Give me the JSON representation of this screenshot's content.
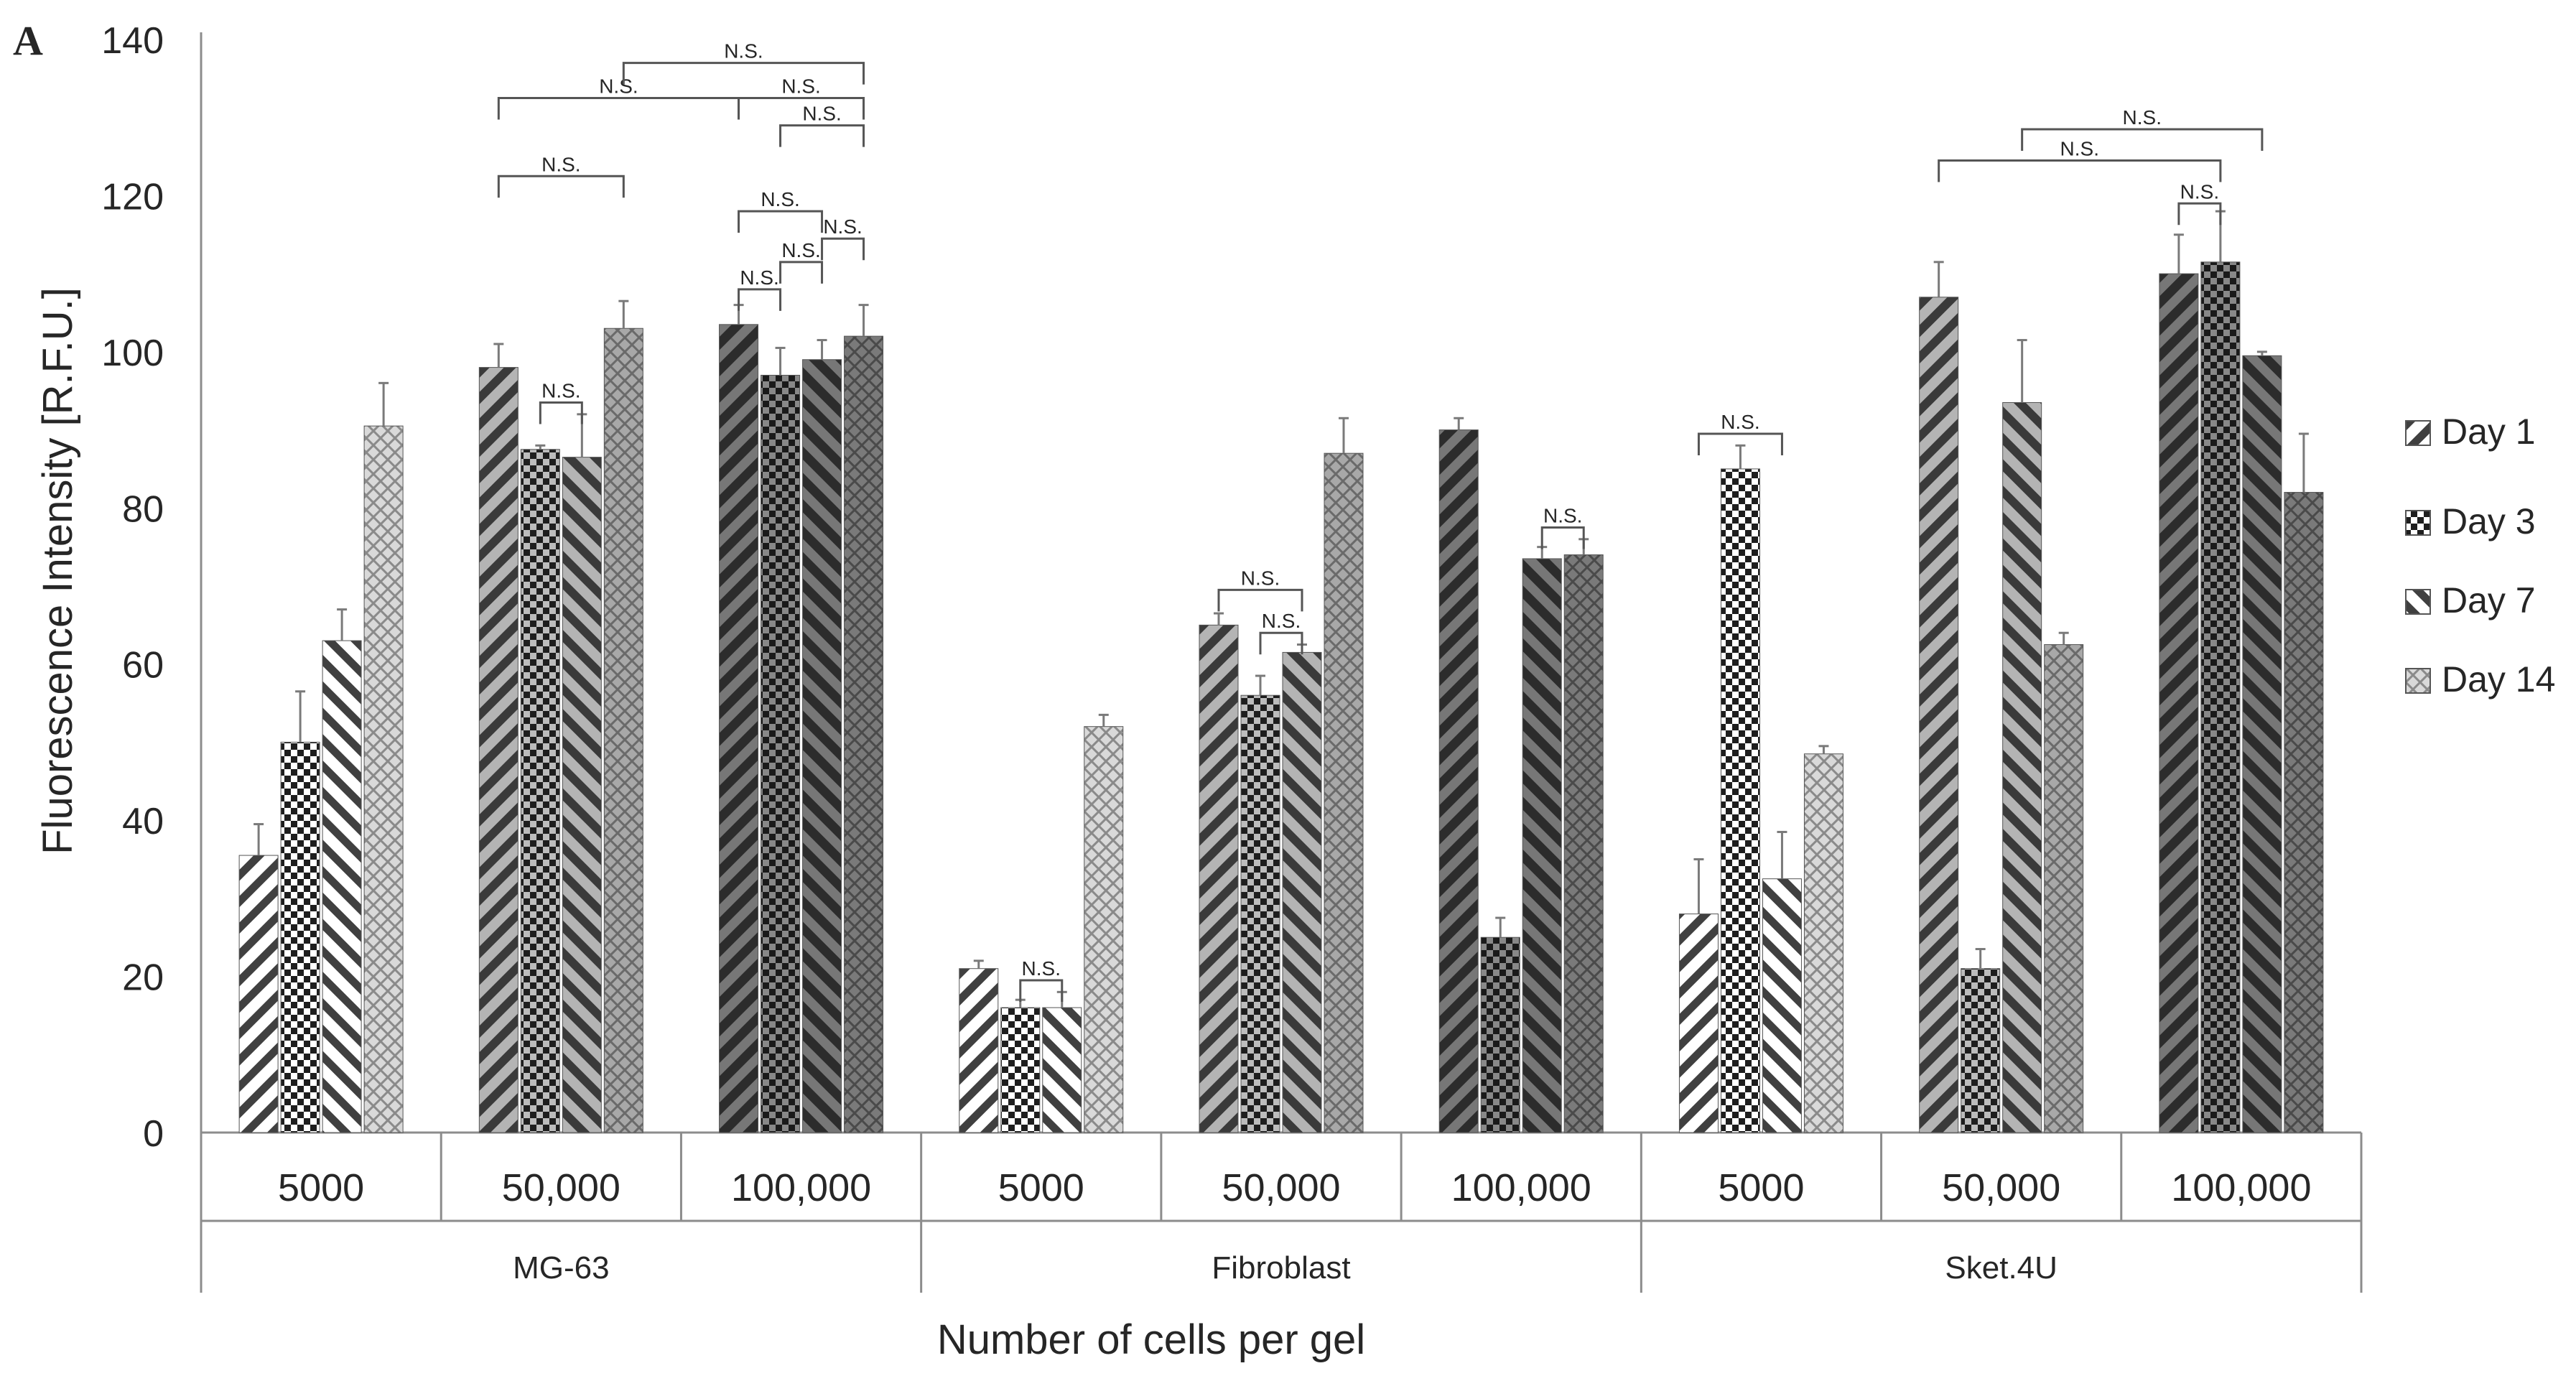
{
  "panel_label": "A",
  "chart_data": {
    "type": "bar",
    "title": "",
    "xlabel": "Number of cells per gel",
    "ylabel": "Fluorescence Intensity [R.F.U.]",
    "ylim": [
      0,
      140
    ],
    "yticks": [
      "0",
      "20",
      "40",
      "60",
      "80",
      "100",
      "120",
      "140"
    ],
    "legend_position": "right",
    "series_names": [
      "Day 1",
      "Day 3",
      "Day 7",
      "Day 14"
    ],
    "groups": [
      {
        "name": "MG-63",
        "categories": [
          {
            "label": "5000",
            "values": [
              35.5,
              50.0,
              63.0,
              90.5
            ],
            "errors": [
              4.0,
              6.5,
              4.0,
              5.5
            ],
            "shade": "light"
          },
          {
            "label": "50,000",
            "values": [
              98.0,
              87.5,
              86.5,
              103.0
            ],
            "errors": [
              3.0,
              0.5,
              5.5,
              3.5
            ],
            "shade": "mid"
          },
          {
            "label": "100,000",
            "values": [
              103.5,
              97.0,
              99.0,
              102.0
            ],
            "errors": [
              2.5,
              3.5,
              2.5,
              4.0
            ],
            "shade": "dark"
          }
        ]
      },
      {
        "name": "Fibroblast",
        "categories": [
          {
            "label": "5000",
            "values": [
              21.0,
              16.0,
              16.0,
              52.0
            ],
            "errors": [
              1.0,
              1.0,
              2.0,
              1.5
            ],
            "shade": "light"
          },
          {
            "label": "50,000",
            "values": [
              65.0,
              56.0,
              61.5,
              87.0
            ],
            "errors": [
              1.5,
              2.5,
              1.0,
              4.5
            ],
            "shade": "mid"
          },
          {
            "label": "100,000",
            "values": [
              90.0,
              25.0,
              73.5,
              74.0
            ],
            "errors": [
              1.5,
              2.5,
              1.5,
              2.0
            ],
            "shade": "dark"
          }
        ]
      },
      {
        "name": "Sket.4U",
        "categories": [
          {
            "label": "5000",
            "values": [
              28.0,
              85.0,
              32.5,
              48.5
            ],
            "errors": [
              7.0,
              3.0,
              6.0,
              1.0
            ],
            "shade": "light"
          },
          {
            "label": "50,000",
            "values": [
              107.0,
              21.0,
              93.5,
              62.5
            ],
            "errors": [
              4.5,
              2.5,
              8.0,
              1.5
            ],
            "shade": "mid"
          },
          {
            "label": "100,000",
            "values": [
              110.0,
              111.5,
              99.5,
              82.0
            ],
            "errors": [
              5.0,
              6.5,
              0.5,
              7.5
            ],
            "shade": "dark"
          }
        ]
      }
    ],
    "annotations": [
      {
        "text": "N.S.",
        "g": 0,
        "c": 1,
        "from": 0,
        "to": 3,
        "y": 122.5
      },
      {
        "text": "N.S.",
        "g": 0,
        "c": 1,
        "from": 1,
        "to": 2,
        "y": 93.5
      },
      {
        "text": "N.S.",
        "g": 0,
        "c": 1,
        "from": 0,
        "to": 4,
        "y": 132.5,
        "to_g": 0,
        "to_c": 2,
        "to_bar": 0
      },
      {
        "text": "N.S.",
        "g": 0,
        "c": 1,
        "from": 3,
        "to": 4,
        "y": 137.0,
        "to_g": 0,
        "to_c": 2,
        "to_bar": 3
      },
      {
        "text": "N.S.",
        "g": 0,
        "c": 2,
        "from": 0,
        "to": 3,
        "y": 132.5
      },
      {
        "text": "N.S.",
        "g": 0,
        "c": 2,
        "from": 1,
        "to": 3,
        "y": 129.0
      },
      {
        "text": "N.S.",
        "g": 0,
        "c": 2,
        "from": 0,
        "to": 2,
        "y": 118.0
      },
      {
        "text": "N.S.",
        "g": 0,
        "c": 2,
        "from": 2,
        "to": 3,
        "y": 114.5
      },
      {
        "text": "N.S.",
        "g": 0,
        "c": 2,
        "from": 1,
        "to": 2,
        "y": 111.5
      },
      {
        "text": "N.S.",
        "g": 0,
        "c": 2,
        "from": 0,
        "to": 1,
        "y": 108.0
      },
      {
        "text": "N.S.",
        "g": 1,
        "c": 0,
        "from": 1,
        "to": 2,
        "y": 19.5
      },
      {
        "text": "N.S.",
        "g": 1,
        "c": 1,
        "from": 0,
        "to": 2,
        "y": 69.5
      },
      {
        "text": "N.S.",
        "g": 1,
        "c": 1,
        "from": 1,
        "to": 2,
        "y": 64.0
      },
      {
        "text": "N.S.",
        "g": 1,
        "c": 2,
        "from": 2,
        "to": 3,
        "y": 77.5
      },
      {
        "text": "N.S.",
        "g": 2,
        "c": 0,
        "from": 0,
        "to": 2,
        "y": 89.5
      },
      {
        "text": "N.S.",
        "g": 2,
        "c": 1,
        "from": 0,
        "to": 1,
        "y": 124.5,
        "to_g": 2,
        "to_c": 2,
        "to_bar": 1
      },
      {
        "text": "N.S.",
        "g": 2,
        "c": 1,
        "from": 2,
        "to": 2,
        "y": 128.5,
        "to_g": 2,
        "to_c": 2,
        "to_bar": 2
      },
      {
        "text": "N.S.",
        "g": 2,
        "c": 2,
        "from": 0,
        "to": 1,
        "y": 119.0
      }
    ]
  }
}
